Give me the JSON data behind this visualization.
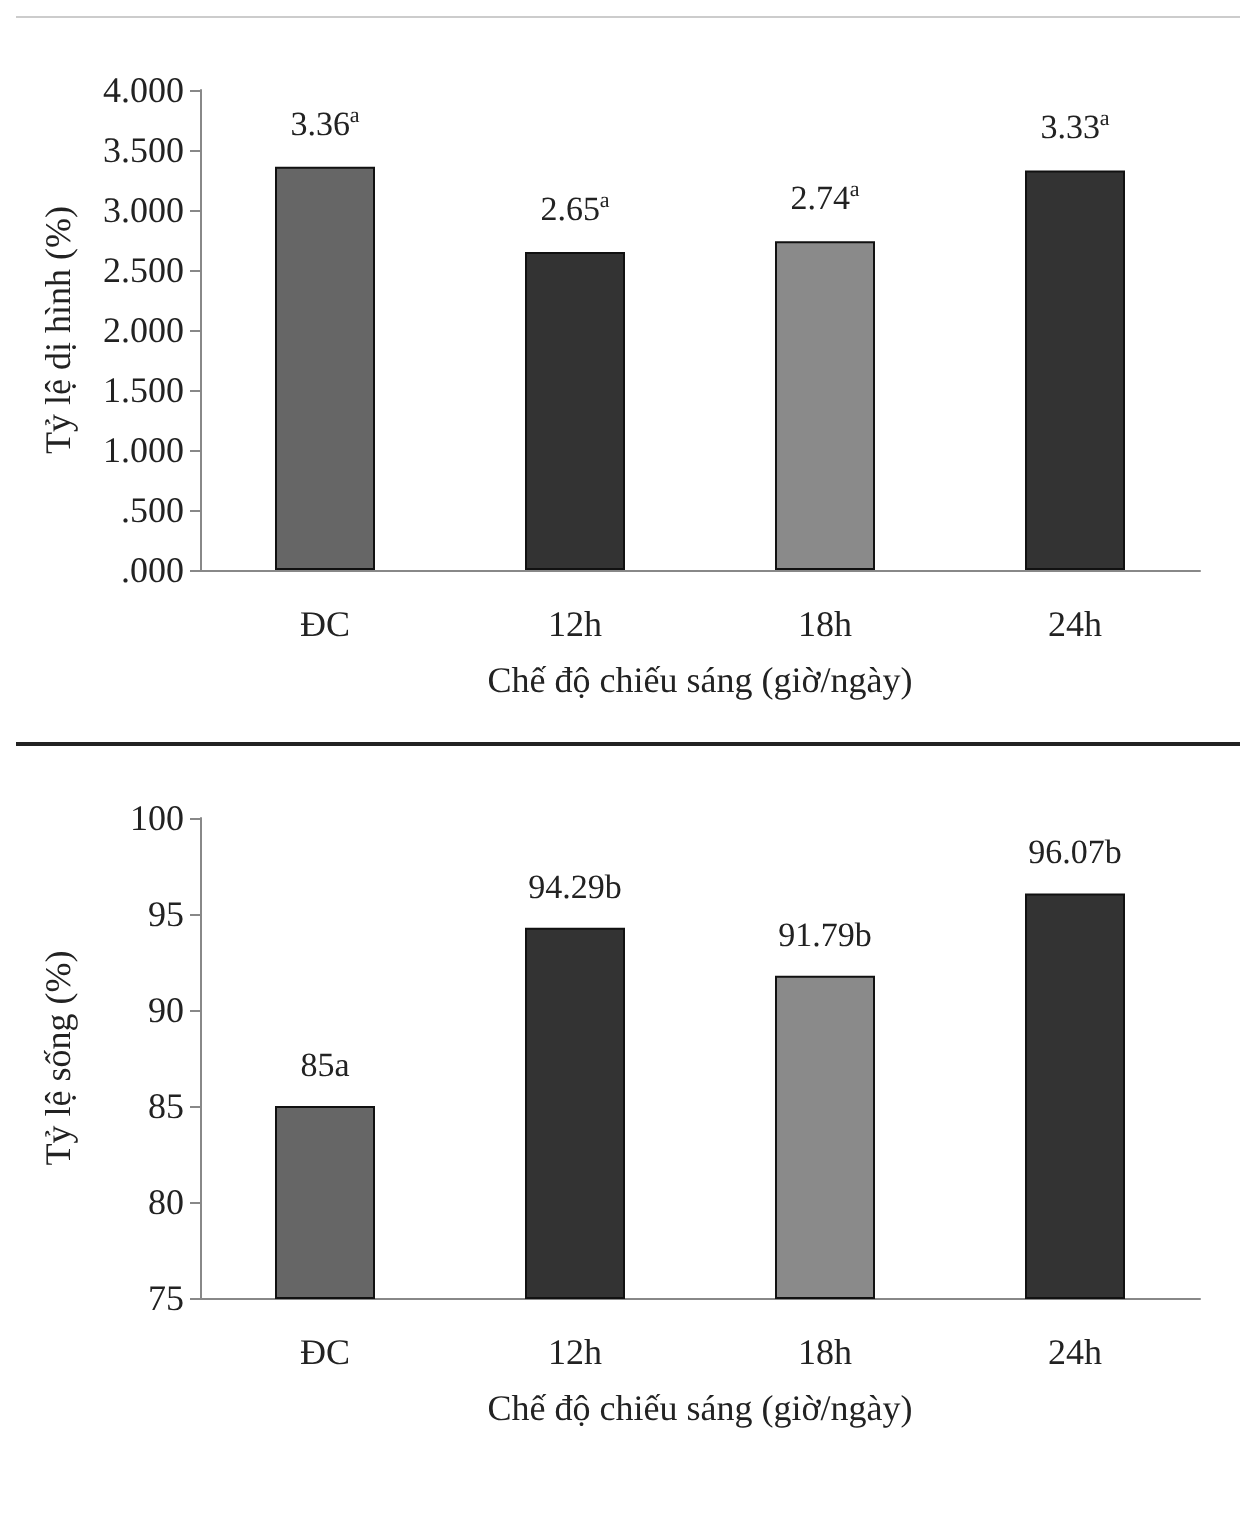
{
  "chart_data": [
    {
      "type": "bar",
      "categories": [
        "ĐC",
        "12h",
        "18h",
        "24h"
      ],
      "values": [
        3.36,
        2.65,
        2.74,
        3.33
      ],
      "colors": [
        "#666666",
        "#333333",
        "#8a8a8a",
        "#333333"
      ],
      "value_labels": [
        "3.36$^{a}$",
        "2.65$^{a}$",
        "2.74$^{a}$",
        "3.33$^{a}$"
      ],
      "xlabel": "Chế độ chiếu sáng (giờ/ngày)",
      "ylabel": "Tỷ lệ dị hình (%)",
      "ylim": [
        0,
        4
      ],
      "yticks": [
        {
          "value": 0,
          "label": ".000"
        },
        {
          "value": 0.5,
          "label": ".500"
        },
        {
          "value": 1,
          "label": "1.000"
        },
        {
          "value": 1.5,
          "label": "1.500"
        },
        {
          "value": 2,
          "label": "2.000"
        },
        {
          "value": 2.5,
          "label": "2.500"
        },
        {
          "value": 3,
          "label": "3.000"
        },
        {
          "value": 3.5,
          "label": "3.500"
        },
        {
          "value": 4,
          "label": "4.000"
        }
      ],
      "grid": false
    },
    {
      "type": "bar",
      "categories": [
        "ĐC",
        "12h",
        "18h",
        "24h"
      ],
      "values": [
        85,
        94.29,
        91.79,
        96.07
      ],
      "colors": [
        "#666666",
        "#333333",
        "#8a8a8a",
        "#333333"
      ],
      "value_labels": [
        "85a",
        "94.29b",
        "91.79b",
        "96.07b"
      ],
      "xlabel": "Chế độ chiếu sáng (giờ/ngày)",
      "ylabel": "Tỷ lệ sống (%)",
      "ylim": [
        75,
        100
      ],
      "yticks": [
        75,
        80,
        85,
        90,
        95,
        100
      ],
      "grid": false
    }
  ]
}
